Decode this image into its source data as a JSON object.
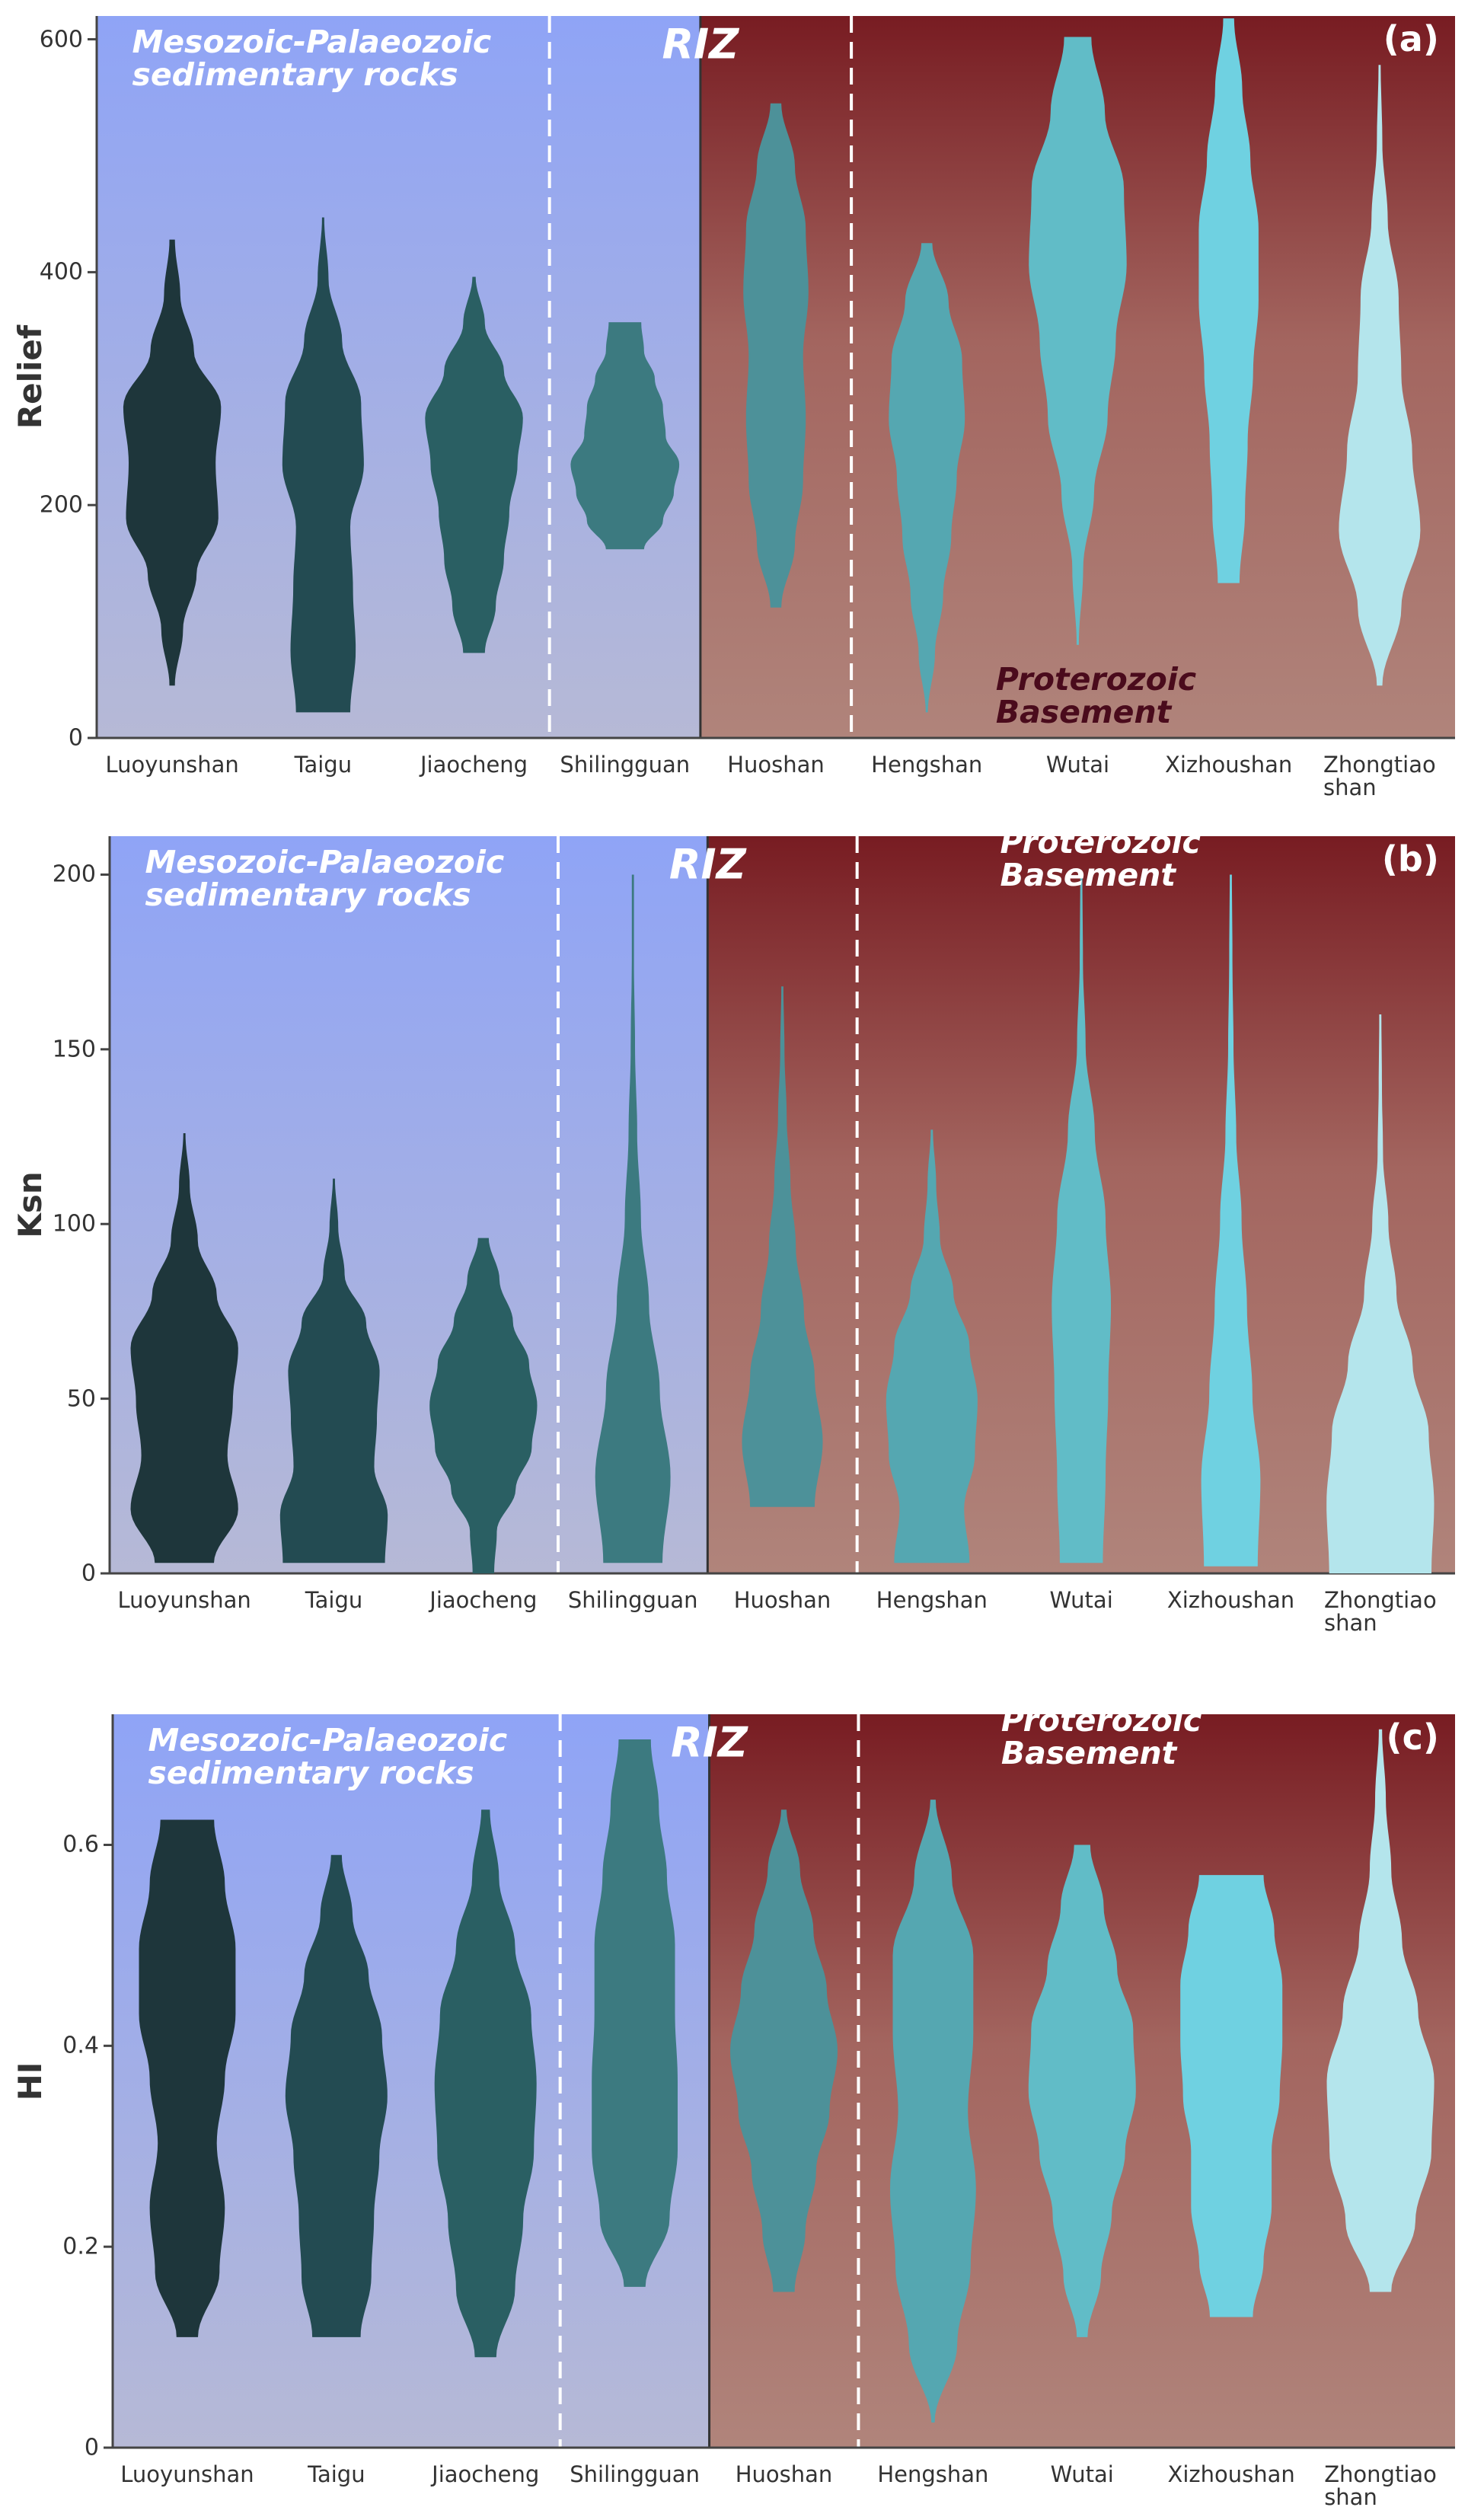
{
  "chart_data": [
    {
      "type": "violin",
      "panel_label": "(a)",
      "y_label": "Relief",
      "region_labels": {
        "left": "Mesozoic-Palaeozoic\nsedimentary rocks",
        "middle": "RIZ",
        "right": "Proterozoic Basement"
      },
      "right_label_position": "bottom",
      "categories": [
        "Luoyunshan",
        "Taigu",
        "Jiaocheng",
        "Shilingguan",
        "Huoshan",
        "Hengshan",
        "Wutai",
        "Xizhoushan",
        "Zhongtiao\nshan"
      ],
      "colors": [
        "#1e363b",
        "#234b52",
        "#2a5f63",
        "#3c7a80",
        "#4d9199",
        "#55a7b1",
        "#61bcc7",
        "#6fd1e1",
        "#b4e5ec"
      ],
      "violins": [
        {
          "min": 45,
          "max": 428,
          "density": [
            0.05,
            0.2,
            0.45,
            0.85,
            0.8,
            0.9,
            0.4,
            0.15,
            0.05
          ]
        },
        {
          "min": 22,
          "max": 447,
          "density": [
            0.5,
            0.6,
            0.55,
            0.5,
            0.75,
            0.7,
            0.35,
            0.1,
            0.02
          ]
        },
        {
          "min": 73,
          "max": 396,
          "density": [
            0.2,
            0.4,
            0.55,
            0.65,
            0.8,
            0.9,
            0.55,
            0.2,
            0.03
          ]
        },
        {
          "min": 162,
          "max": 357,
          "density": [
            0.35,
            0.7,
            0.9,
            1.0,
            0.75,
            0.7,
            0.55,
            0.35,
            0.3
          ]
        },
        {
          "min": 112,
          "max": 545,
          "density": [
            0.1,
            0.35,
            0.5,
            0.55,
            0.5,
            0.6,
            0.55,
            0.35,
            0.1
          ]
        },
        {
          "min": 22,
          "max": 425,
          "density": [
            0.02,
            0.15,
            0.3,
            0.45,
            0.55,
            0.7,
            0.65,
            0.4,
            0.1
          ]
        },
        {
          "min": 80,
          "max": 602,
          "density": [
            0.02,
            0.1,
            0.3,
            0.55,
            0.7,
            0.9,
            0.85,
            0.5,
            0.25
          ]
        },
        {
          "min": 133,
          "max": 618,
          "density": [
            0.2,
            0.3,
            0.35,
            0.45,
            0.55,
            0.55,
            0.4,
            0.25,
            0.1
          ]
        },
        {
          "min": 45,
          "max": 578,
          "density": [
            0.05,
            0.4,
            0.75,
            0.6,
            0.4,
            0.35,
            0.15,
            0.05,
            0.02
          ]
        }
      ],
      "ylim": [
        0,
        620
      ],
      "yticks": [
        0,
        200,
        400,
        600
      ]
    },
    {
      "type": "violin",
      "panel_label": "(b)",
      "y_label": "Ksn",
      "region_labels": {
        "left": "Mesozoic-Palaeozoic\nsedimentary rocks",
        "middle": "RIZ",
        "right": "Proterozoic Basement"
      },
      "right_label_position": "top",
      "categories": [
        "Luoyunshan",
        "Taigu",
        "Jiaocheng",
        "Shilingguan",
        "Huoshan",
        "Hengshan",
        "Wutai",
        "Xizhoushan",
        "Zhongtiao\nshan"
      ],
      "colors": [
        "#1e363b",
        "#234b52",
        "#2a5f63",
        "#3c7a80",
        "#4d9199",
        "#55a7b1",
        "#61bcc7",
        "#6fd1e1",
        "#b4e5ec"
      ],
      "violins": [
        {
          "min": 3,
          "max": 126,
          "density": [
            0.55,
            1.0,
            0.8,
            0.9,
            1.0,
            0.6,
            0.25,
            0.1,
            0.02
          ]
        },
        {
          "min": 3,
          "max": 113,
          "density": [
            0.95,
            1.0,
            0.75,
            0.8,
            0.85,
            0.6,
            0.2,
            0.08,
            0.02
          ]
        },
        {
          "min": 0,
          "max": 96,
          "density": [
            0.2,
            0.25,
            0.6,
            0.9,
            1.0,
            0.85,
            0.55,
            0.3,
            0.1
          ]
        },
        {
          "min": 3,
          "max": 200,
          "density": [
            0.55,
            0.7,
            0.5,
            0.3,
            0.15,
            0.08,
            0.04,
            0.02,
            0.02
          ]
        },
        {
          "min": 19,
          "max": 168,
          "density": [
            0.6,
            0.75,
            0.6,
            0.4,
            0.25,
            0.15,
            0.08,
            0.04,
            0.02
          ]
        },
        {
          "min": 3,
          "max": 127,
          "density": [
            0.7,
            0.6,
            0.8,
            0.85,
            0.7,
            0.4,
            0.15,
            0.08,
            0.02
          ]
        },
        {
          "min": 3,
          "max": 200,
          "density": [
            0.4,
            0.45,
            0.5,
            0.55,
            0.45,
            0.25,
            0.08,
            0.03,
            0.02
          ]
        },
        {
          "min": 2,
          "max": 200,
          "density": [
            0.5,
            0.55,
            0.4,
            0.3,
            0.2,
            0.1,
            0.05,
            0.03,
            0.02
          ]
        },
        {
          "min": 0,
          "max": 160,
          "density": [
            0.95,
            1.0,
            0.9,
            0.6,
            0.3,
            0.15,
            0.05,
            0.03,
            0.02
          ]
        }
      ],
      "ylim": [
        0,
        211
      ],
      "yticks": [
        0,
        50,
        100,
        150,
        200
      ]
    },
    {
      "type": "violin",
      "panel_label": "(c)",
      "y_label": "HI",
      "region_labels": {
        "left": "Mesozoic-Palaeozoic\nsedimentary rocks",
        "middle": "RIZ",
        "right": "Proterozoic Basement"
      },
      "right_label_position": "top",
      "categories": [
        "Luoyunshan",
        "Taigu",
        "Jiaocheng",
        "Shilingguan",
        "Huoshan",
        "Hengshan",
        "Wutai",
        "Xizhoushan",
        "Zhongtiao\nshan"
      ],
      "colors": [
        "#1e363b",
        "#234b52",
        "#2a5f63",
        "#3c7a80",
        "#4d9199",
        "#55a7b1",
        "#61bcc7",
        "#6fd1e1",
        "#b4e5ec"
      ],
      "violins": [
        {
          "min": 0.11,
          "max": 0.625,
          "density": [
            0.2,
            0.6,
            0.7,
            0.55,
            0.7,
            0.9,
            0.9,
            0.7,
            0.5
          ]
        },
        {
          "min": 0.11,
          "max": 0.59,
          "density": [
            0.45,
            0.65,
            0.7,
            0.8,
            0.95,
            0.85,
            0.6,
            0.3,
            0.1
          ]
        },
        {
          "min": 0.09,
          "max": 0.635,
          "density": [
            0.2,
            0.55,
            0.7,
            0.9,
            0.95,
            0.85,
            0.55,
            0.25,
            0.08
          ]
        },
        {
          "min": 0.16,
          "max": 0.705,
          "density": [
            0.2,
            0.65,
            0.8,
            0.8,
            0.75,
            0.75,
            0.6,
            0.45,
            0.3
          ]
        },
        {
          "min": 0.155,
          "max": 0.635,
          "density": [
            0.2,
            0.4,
            0.6,
            0.85,
            1.0,
            0.8,
            0.55,
            0.3,
            0.05
          ]
        },
        {
          "min": 0.025,
          "max": 0.645,
          "density": [
            0.03,
            0.45,
            0.7,
            0.8,
            0.65,
            0.75,
            0.75,
            0.35,
            0.05
          ]
        },
        {
          "min": 0.11,
          "max": 0.6,
          "density": [
            0.1,
            0.35,
            0.55,
            0.8,
            1.0,
            0.95,
            0.65,
            0.4,
            0.15
          ]
        },
        {
          "min": 0.13,
          "max": 0.57,
          "density": [
            0.4,
            0.6,
            0.75,
            0.75,
            0.9,
            0.95,
            0.95,
            0.8,
            0.6
          ]
        },
        {
          "min": 0.155,
          "max": 0.715,
          "density": [
            0.2,
            0.65,
            0.95,
            1.0,
            0.7,
            0.4,
            0.2,
            0.1,
            0.03
          ]
        }
      ],
      "ylim": [
        0,
        0.73
      ],
      "yticks": [
        0,
        0.2,
        0.4,
        0.6
      ]
    }
  ]
}
